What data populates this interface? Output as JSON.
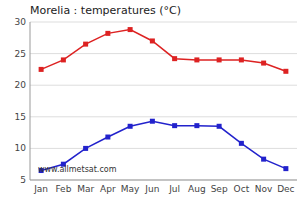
{
  "chart_data": {
    "type": "line",
    "title": "Morelia : temperatures (°C)",
    "categories": [
      "Jan",
      "Feb",
      "Mar",
      "Apr",
      "May",
      "Jun",
      "Jul",
      "Aug",
      "Sep",
      "Oct",
      "Nov",
      "Dec"
    ],
    "series": [
      {
        "color": "#dd2222",
        "values": [
          22.5,
          24.0,
          26.5,
          28.2,
          28.8,
          27.0,
          24.2,
          24.0,
          24.0,
          24.0,
          23.5,
          22.2
        ]
      },
      {
        "color": "#2222cc",
        "values": [
          6.5,
          7.5,
          10.0,
          11.8,
          13.5,
          14.3,
          13.6,
          13.6,
          13.5,
          10.8,
          8.3,
          6.8
        ]
      }
    ],
    "ylim": [
      5,
      30
    ],
    "yticks": [
      5,
      10,
      15,
      20,
      25,
      30
    ],
    "grid": true,
    "marker": "square",
    "line_style": "solid",
    "annotations": [
      "www.allmetsat.com"
    ]
  }
}
